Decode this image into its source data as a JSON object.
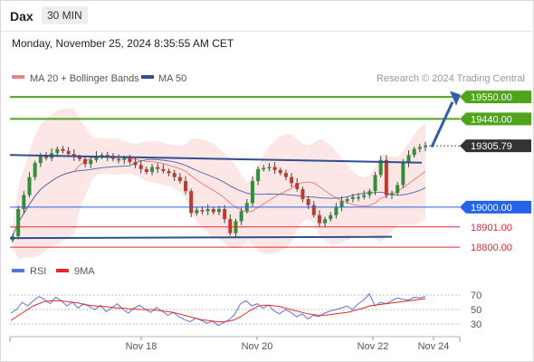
{
  "header": {
    "symbol": "Dax",
    "timeframe": "30 MIN",
    "datetime": "Monday, November 25, 2024 8:35:55 AM CET"
  },
  "legend": {
    "ma20_bb_label": "MA 20 + Bollinger Bands",
    "ma50_label": "MA 50",
    "source": "Research © 2024 Trading Central",
    "rsi_label": "RSI",
    "ma9_label": "9MA"
  },
  "colors": {
    "green_level": "#4fa31d",
    "blue_level": "#2563eb",
    "red_level": "#e8262b",
    "current_price": "#333333",
    "trendline": "#2f4f8f",
    "arrow": "#2f5fa8",
    "bollinger_fill": "#fde2e2",
    "ma20": "#f08080",
    "ma50": "#5a6ea8",
    "candle_up": "#2f8f3a",
    "candle_down": "#c0392b",
    "rsi": "#5577dd",
    "ma9": "#e8262b"
  },
  "chart_data": [
    {
      "type": "candlestick",
      "title": "Dax",
      "timeframe": "30 MIN",
      "x_ticks": [
        "Nov 18",
        "Nov 20",
        "Nov 22",
        "Nov 24"
      ],
      "ylim": [
        18760,
        19600
      ],
      "levels": [
        {
          "price": 19550.0,
          "label": "19550.00",
          "kind": "resistance",
          "color": "#4fa31d"
        },
        {
          "price": 19440.0,
          "label": "19440.00",
          "kind": "resistance",
          "color": "#4fa31d"
        },
        {
          "price": 19305.79,
          "label": "19305.79",
          "kind": "current",
          "color": "#333333"
        },
        {
          "price": 19000.0,
          "label": "19000.00",
          "kind": "pivot",
          "color": "#2563eb"
        },
        {
          "price": 18901.0,
          "label": "18901.00",
          "kind": "support",
          "color": "#e8262b"
        },
        {
          "price": 18800.0,
          "label": "18800.00",
          "kind": "support",
          "color": "#e8262b"
        }
      ],
      "closes": [
        18855,
        18990,
        19060,
        19150,
        19220,
        19255,
        19245,
        19270,
        19290,
        19280,
        19265,
        19250,
        19240,
        19215,
        19235,
        19255,
        19260,
        19250,
        19240,
        19235,
        19245,
        19225,
        19210,
        19190,
        19175,
        19200,
        19190,
        19180,
        19170,
        19150,
        19130,
        19080,
        18970,
        18985,
        18980,
        18990,
        18975,
        18990,
        18940,
        18870,
        18930,
        18980,
        19020,
        19130,
        19190,
        19195,
        19200,
        19185,
        19170,
        19150,
        19120,
        19090,
        19040,
        19010,
        18960,
        18920,
        18940,
        18960,
        19000,
        19030,
        19040,
        19050,
        19050,
        19060,
        19080,
        19160,
        19235,
        19060,
        19070,
        19110,
        19220,
        19260,
        19290,
        19300,
        19306
      ]
    },
    {
      "type": "line",
      "title": "RSI",
      "yticks": [
        70,
        50,
        30
      ],
      "ylim": [
        15,
        85
      ],
      "x_ticks": [
        "Nov 18",
        "Nov 20",
        "Nov 22",
        "Nov 24"
      ],
      "series": [
        {
          "name": "RSI",
          "values": [
            45,
            50,
            60,
            55,
            62,
            68,
            64,
            58,
            67,
            62,
            55,
            60,
            52,
            58,
            54,
            50,
            56,
            47,
            52,
            58,
            50,
            45,
            52,
            56,
            50,
            46,
            53,
            48,
            42,
            46,
            40,
            36,
            33,
            38,
            35,
            31,
            34,
            28,
            32,
            36,
            44,
            58,
            62,
            55,
            58,
            52,
            56,
            48,
            44,
            50,
            46,
            40,
            44,
            37,
            42,
            40,
            45,
            48,
            50,
            52,
            55,
            50,
            58,
            63,
            72,
            55,
            60,
            58,
            62,
            66,
            64,
            63,
            67,
            66,
            68
          ]
        },
        {
          "name": "9MA",
          "values": [
            35,
            40,
            45,
            50,
            55,
            58,
            61,
            62,
            62,
            62,
            61,
            60,
            59,
            57,
            56,
            55,
            54,
            54,
            53,
            52,
            52,
            51,
            51,
            50,
            50,
            50,
            49,
            48,
            47,
            46,
            44,
            42,
            40,
            38,
            36,
            35,
            34,
            33,
            33,
            34,
            36,
            40,
            45,
            50,
            54,
            56,
            56,
            55,
            54,
            52,
            50,
            48,
            46,
            44,
            43,
            42,
            42,
            43,
            44,
            45,
            46,
            48,
            50,
            52,
            55,
            56,
            57,
            58,
            59,
            60,
            61,
            62,
            63,
            64,
            65
          ]
        }
      ]
    }
  ]
}
